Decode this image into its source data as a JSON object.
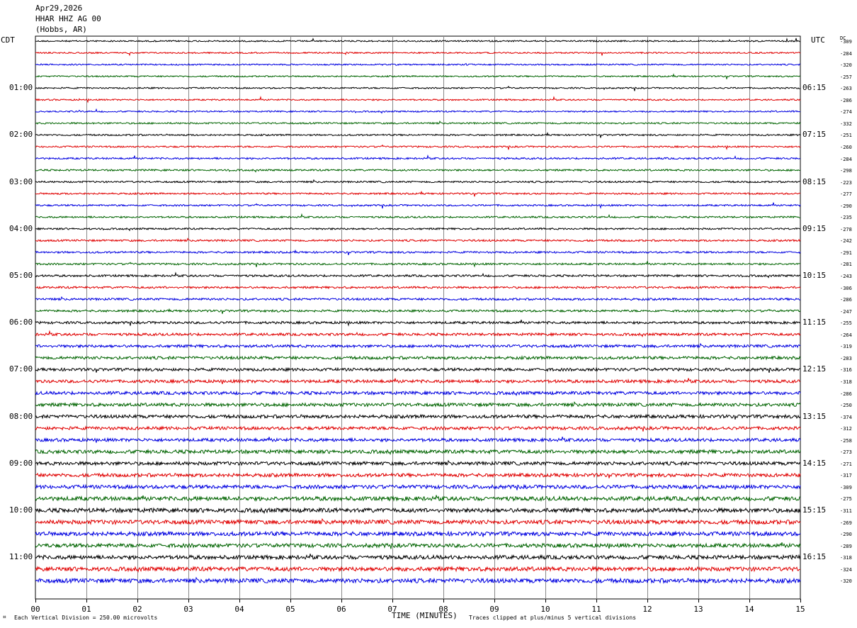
{
  "header": {
    "date": "Apr29,2026",
    "station": "HHAR HHZ AG 00",
    "location": "(Hobbs, AR)"
  },
  "left_tz": "CDT",
  "right_tz": "UTC",
  "dc_label": "DC",
  "footer": {
    "scale": "Each Vertical Division =  250.00 microvolts",
    "xlabel": "TIME (MINUTES)",
    "clip_note": "Traces clipped at plus/minus 5 vertical divisions"
  },
  "chart_data": {
    "type": "line",
    "title": "HHAR HHZ AG 00",
    "xlabel": "TIME (MINUTES)",
    "xlim": [
      0,
      15
    ],
    "x_ticks": [
      "00",
      "01",
      "02",
      "03",
      "04",
      "05",
      "06",
      "07",
      "08",
      "09",
      "10",
      "11",
      "12",
      "13",
      "14",
      "15"
    ],
    "trace_colors": [
      "#000000",
      "#e00000",
      "#0000e0",
      "#006400"
    ],
    "left_hour_labels": [
      "01:00",
      "02:00",
      "03:00",
      "04:00",
      "05:00",
      "06:00",
      "07:00",
      "08:00",
      "09:00",
      "10:00",
      "11:00"
    ],
    "right_hour_labels": [
      "06:15",
      "07:15",
      "08:15",
      "09:15",
      "10:15",
      "11:15",
      "12:15",
      "13:15",
      "14:15",
      "15:15",
      "16:15"
    ],
    "dc_offsets": [
      -309,
      -284,
      -320,
      -257,
      -263,
      -286,
      -274,
      -332,
      -251,
      -260,
      -284,
      -298,
      -223,
      -277,
      -290,
      -235,
      -278,
      -242,
      -291,
      -281,
      -243,
      -306,
      -286,
      -247,
      -255,
      -264,
      -319,
      -283,
      -316,
      -318,
      -286,
      -250,
      -374,
      -312,
      -258,
      -273,
      -271,
      -317,
      -309,
      -275,
      -311,
      -269,
      -290,
      -289,
      -318,
      -324,
      -320
    ],
    "noise_level": [
      1.0,
      1.0,
      1.0,
      1.0,
      1.0,
      1.0,
      1.0,
      1.1,
      1.1,
      1.1,
      1.2,
      1.2,
      1.2,
      1.2,
      1.2,
      1.2,
      1.2,
      1.3,
      1.3,
      1.3,
      1.4,
      1.4,
      1.5,
      1.5,
      1.7,
      1.8,
      1.9,
      2.0,
      2.0,
      2.1,
      2.2,
      2.3,
      2.3,
      2.2,
      2.2,
      2.5,
      2.4,
      2.4,
      2.5,
      2.8,
      2.9,
      2.9,
      2.8,
      2.7,
      2.7,
      2.9,
      3.0
    ]
  }
}
